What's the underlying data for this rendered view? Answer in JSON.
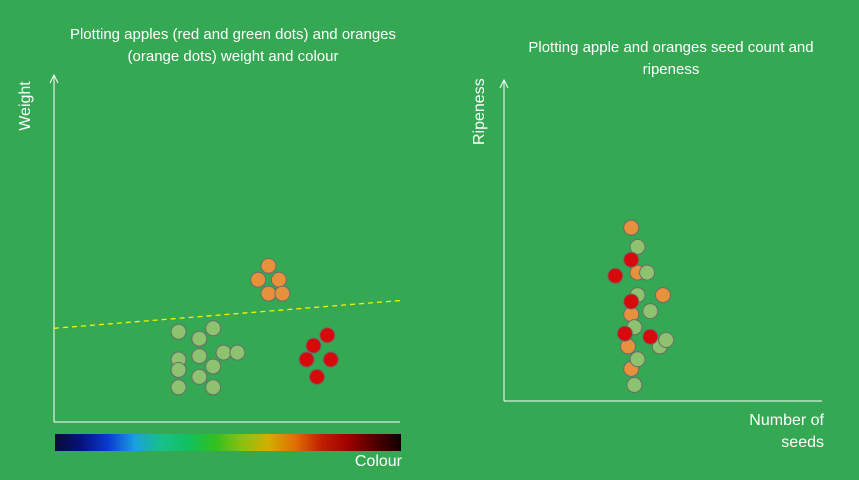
{
  "chart_data": [
    {
      "type": "scatter",
      "title": "Plotting apples (red and green dots) and oranges (orange dots) weight and colour",
      "xlabel": "Colour",
      "ylabel": "Weight",
      "xlim": [
        0,
        100
      ],
      "ylim": [
        0,
        100
      ],
      "legend": "none",
      "grid": false,
      "colorbar": [
        "#0a0a3a",
        "#06127a",
        "#0a3bd0",
        "#1aa0e0",
        "#18c08a",
        "#10c060",
        "#30c020",
        "#8ac010",
        "#d0b000",
        "#e07000",
        "#c02000",
        "#a00000",
        "#500000",
        "#100000"
      ],
      "threshold_line": {
        "x": [
          0,
          100
        ],
        "y": [
          27,
          35
        ],
        "color": "#f4f400"
      },
      "series": [
        {
          "color": "#e8913c",
          "points": [
            [
              62,
              45
            ],
            [
              59,
              41
            ],
            [
              65,
              41
            ],
            [
              62,
              37
            ],
            [
              66,
              37
            ]
          ]
        },
        {
          "color": "#8dc26f",
          "points": [
            [
              36,
              26
            ],
            [
              42,
              24
            ],
            [
              46,
              27
            ],
            [
              42,
              19
            ],
            [
              49,
              20
            ],
            [
              36,
              18
            ],
            [
              46,
              16
            ],
            [
              53,
              20
            ],
            [
              36,
              10
            ],
            [
              46,
              10
            ],
            [
              42,
              13
            ],
            [
              36,
              15
            ]
          ]
        },
        {
          "color": "#d60a0a",
          "points": [
            [
              75,
              22
            ],
            [
              79,
              25
            ],
            [
              73,
              18
            ],
            [
              80,
              18
            ],
            [
              76,
              13
            ]
          ]
        }
      ]
    },
    {
      "type": "scatter",
      "title": "Plotting apple and oranges seed count and ripeness",
      "xlabel": "Number of seeds",
      "ylabel": "Ripeness",
      "xlim": [
        0,
        100
      ],
      "ylim": [
        0,
        100
      ],
      "legend": "none",
      "grid": false,
      "series": [
        {
          "color": "#e8913c",
          "points": [
            [
              40,
              54
            ],
            [
              42,
              40
            ],
            [
              50,
              33
            ],
            [
              40,
              27
            ],
            [
              39,
              17
            ],
            [
              40,
              10
            ]
          ]
        },
        {
          "color": "#8dc26f",
          "points": [
            [
              42,
              48
            ],
            [
              45,
              40
            ],
            [
              42,
              33
            ],
            [
              46,
              28
            ],
            [
              41,
              23
            ],
            [
              49,
              17
            ],
            [
              42,
              13
            ],
            [
              41,
              5
            ],
            [
              51,
              19
            ]
          ]
        },
        {
          "color": "#d60a0a",
          "points": [
            [
              40,
              44
            ],
            [
              35,
              39
            ],
            [
              40,
              31
            ],
            [
              38,
              21
            ],
            [
              46,
              20
            ]
          ]
        }
      ]
    }
  ]
}
